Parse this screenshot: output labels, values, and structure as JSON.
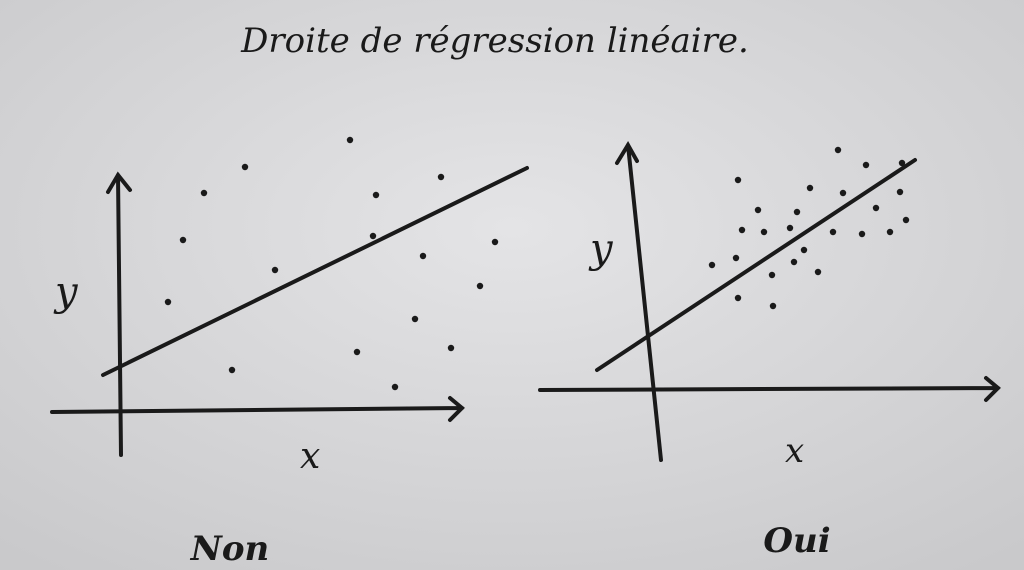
{
  "title": "Droite de régression linéaire.",
  "panels": [
    {
      "y_label": "y",
      "x_label": "x",
      "caption": "Non"
    },
    {
      "y_label": "y",
      "x_label": "x",
      "caption": "Oui"
    }
  ]
}
